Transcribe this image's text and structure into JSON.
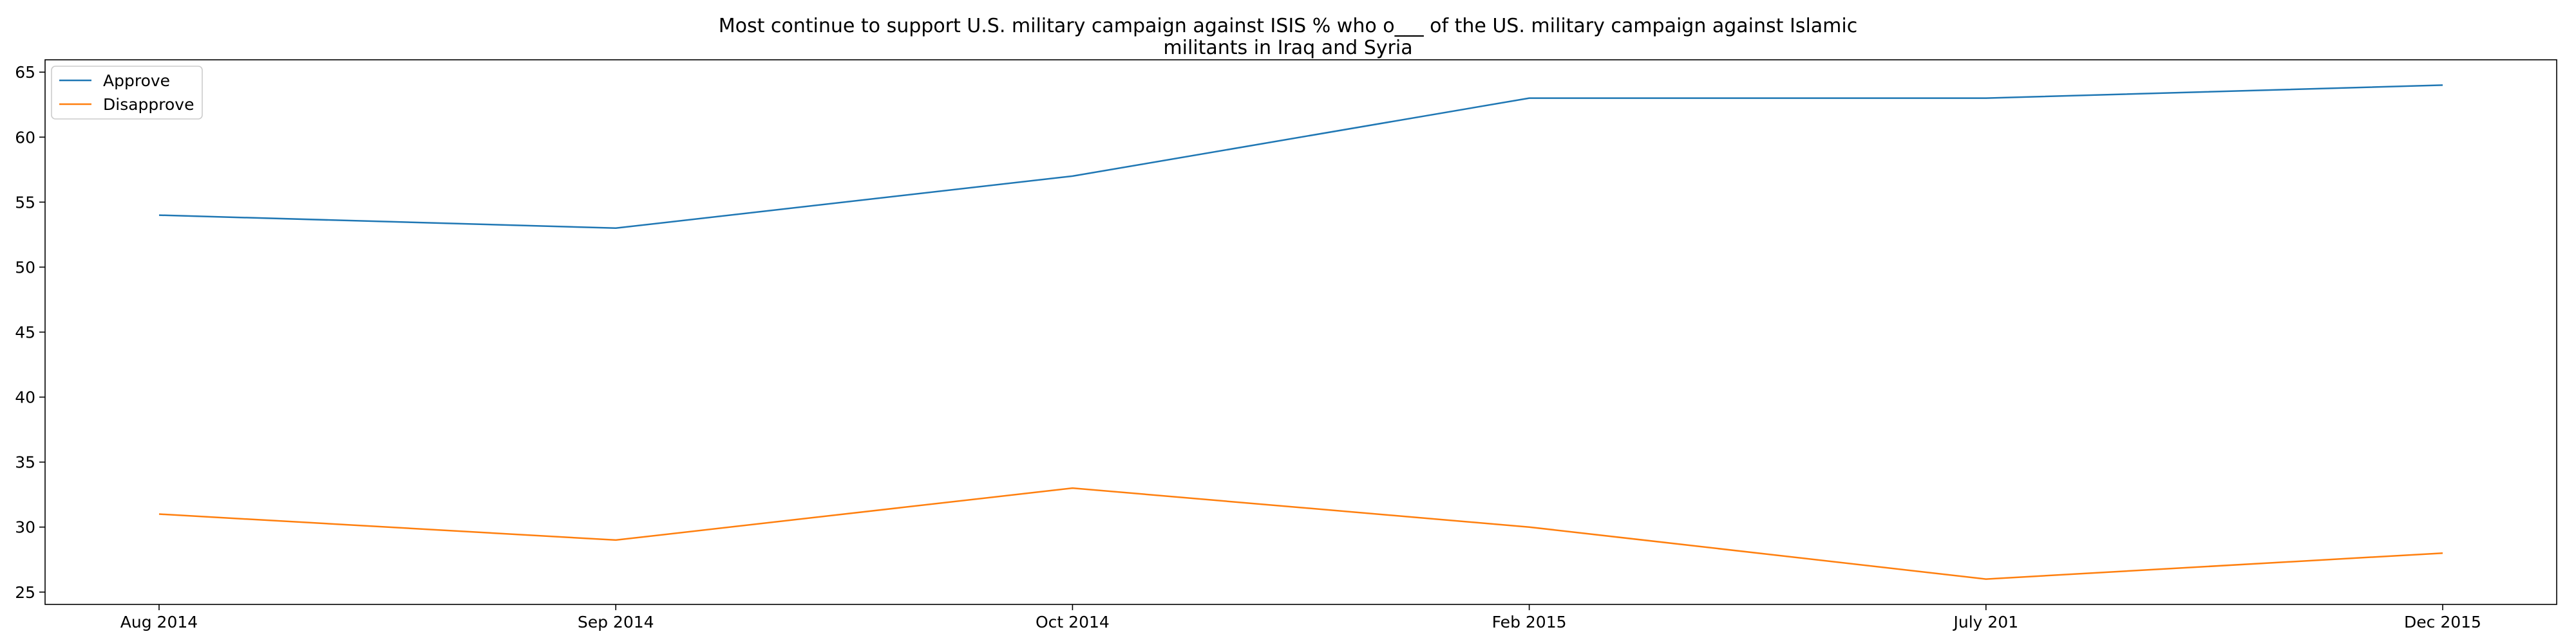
{
  "chart_data": {
    "type": "line",
    "title": "Most continue to support U.S. military campaign against ISIS % who o___ of the US. military campaign against Islamic militants in Iraq and Syria",
    "title_lines": [
      "Most continue to support U.S. military campaign against ISIS % who o___ of the US. military campaign against Islamic",
      "militants in Iraq and Syria"
    ],
    "xlabel": "",
    "ylabel": "",
    "categories": [
      "Aug 2014",
      "Sep 2014",
      "Oct 2014",
      "Feb 2015",
      "July 201",
      "Dec 2015"
    ],
    "series": [
      {
        "name": "Approve",
        "values": [
          54,
          53,
          57,
          63,
          63,
          64
        ],
        "color": "#1f77b4"
      },
      {
        "name": "Disapprove",
        "values": [
          31,
          29,
          33,
          30,
          26,
          28
        ],
        "color": "#ff7f0e"
      }
    ],
    "ylim": [
      24.05,
      65.95
    ],
    "yticks": [
      25,
      30,
      35,
      40,
      45,
      50,
      55,
      60,
      65
    ],
    "grid": false,
    "legend_position": "top-left"
  }
}
